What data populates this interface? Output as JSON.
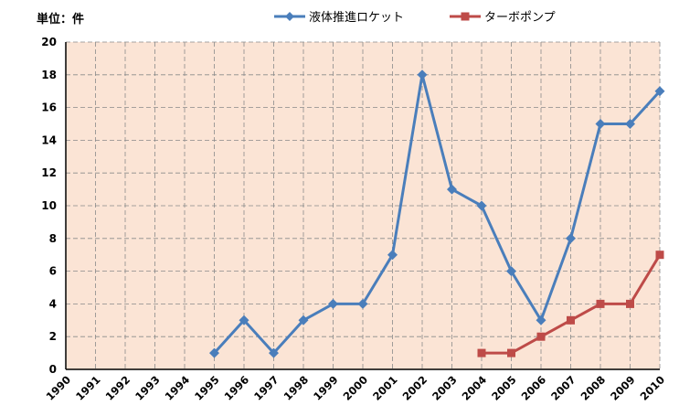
{
  "unit_label": "単位：件",
  "chart_data": {
    "type": "line",
    "categories": [
      "1990",
      "1991",
      "1992",
      "1993",
      "1994",
      "1995",
      "1996",
      "1997",
      "1998",
      "1999",
      "2000",
      "2001",
      "2002",
      "2003",
      "2004",
      "2005",
      "2006",
      "2007",
      "2008",
      "2009",
      "2010"
    ],
    "x_tick_labels": [
      "1990",
      "1991",
      "1992",
      "1993",
      "1994",
      "1995",
      "1996",
      "1997",
      "1998",
      "1999",
      "2000",
      "2001",
      "2002",
      "2003",
      "2004",
      "2005",
      "2006",
      "2007",
      "2008",
      "2009",
      "2010"
    ],
    "y_tick_labels": [
      "0",
      "2",
      "4",
      "6",
      "8",
      "10",
      "12",
      "14",
      "16",
      "18",
      "20"
    ],
    "ylim": [
      0,
      20
    ],
    "grid": true,
    "legend_position": "top",
    "series": [
      {
        "name": "液体推進ロケット",
        "color": "#4A7EBB",
        "marker": "diamond",
        "values": [
          null,
          null,
          null,
          null,
          null,
          1,
          3,
          1,
          3,
          4,
          4,
          7,
          18,
          11,
          10,
          6,
          3,
          8,
          15,
          15,
          17
        ]
      },
      {
        "name": "ターボポンプ",
        "color": "#BE4B48",
        "marker": "square",
        "values": [
          null,
          null,
          null,
          null,
          null,
          null,
          null,
          null,
          null,
          null,
          null,
          null,
          null,
          null,
          1,
          1,
          2,
          3,
          4,
          4,
          7
        ]
      }
    ],
    "plot_background": "#FBE4D5"
  }
}
